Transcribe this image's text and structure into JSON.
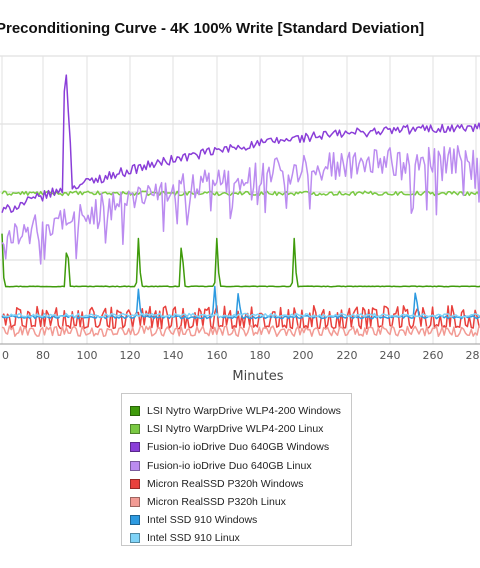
{
  "chart_data": {
    "type": "line",
    "title": "Preconditioning Curve - 4K 100% Write [Standard Deviation]",
    "xlabel": "Minutes",
    "ylabel": "",
    "x_ticks": [
      "0",
      "80",
      "100",
      "120",
      "140",
      "160",
      "180",
      "200",
      "220",
      "240",
      "260",
      "280"
    ],
    "xlim": [
      60,
      285
    ],
    "ylim": [
      0,
      300
    ],
    "grid": true,
    "legend_position": "bottom",
    "series": [
      {
        "name": "LSI Nytro WarpDrive WLP4-200 Windows",
        "color": "#3f9b0b",
        "style": "flat-spikes",
        "base": 60,
        "noise": 0.3,
        "spikes": [
          [
            60,
            115
          ],
          [
            91,
            115
          ],
          [
            124,
            115
          ],
          [
            144,
            115
          ],
          [
            160,
            115
          ],
          [
            196,
            115
          ]
        ]
      },
      {
        "name": "LSI Nytro WarpDrive WLP4-200 Linux",
        "color": "#7ac943",
        "style": "flat-noisy",
        "base": 157,
        "noise": 2.2,
        "spikes": []
      },
      {
        "name": "Fusion-io ioDrive Duo 640GB Windows",
        "color": "#8a3ed8",
        "style": "rising",
        "start": 138,
        "end": 225,
        "noise": 5,
        "spikes": [
          [
            90,
            304
          ],
          [
            91,
            312
          ],
          [
            92,
            240
          ]
        ]
      },
      {
        "name": "Fusion-io ioDrive Duo 640GB Linux",
        "color": "#bb8cf0",
        "style": "rising-noisy",
        "start": 108,
        "end": 192,
        "noise": 15,
        "spikes": []
      },
      {
        "name": "Micron RealSSD P320h Windows",
        "color": "#e8403c",
        "style": "bursts",
        "base": 18,
        "noise": 20,
        "spikes": []
      },
      {
        "name": "Micron RealSSD P320h Linux",
        "color": "#f29b94",
        "style": "bursts",
        "base": 10,
        "noise": 8,
        "spikes": []
      },
      {
        "name": "Intel SSD 910 Windows",
        "color": "#2d9ae0",
        "style": "flat-spikes",
        "base": 28,
        "noise": 1.5,
        "spikes": [
          [
            124,
            60
          ],
          [
            159,
            60
          ],
          [
            170,
            58
          ],
          [
            252,
            62
          ]
        ]
      },
      {
        "name": "Intel SSD 910 Linux",
        "color": "#7fd3f7",
        "style": "flat-noisy",
        "base": 30,
        "noise": 1.8,
        "spikes": []
      }
    ]
  }
}
